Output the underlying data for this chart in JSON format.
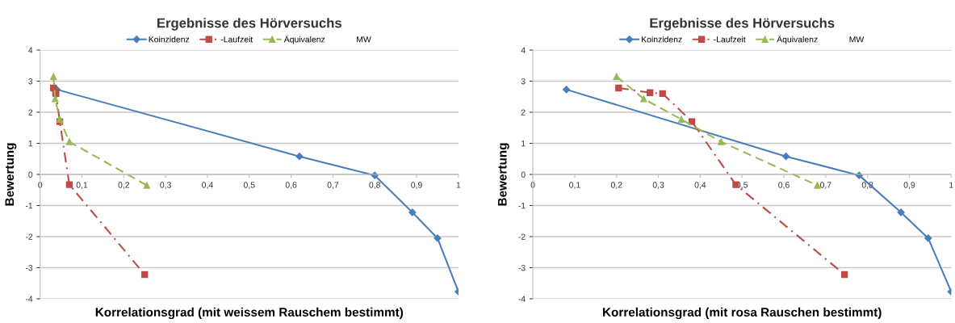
{
  "chart_data": [
    {
      "type": "line",
      "title": "Ergebnisse des Hörversuchs",
      "xlabel": "Korrelationsgrad (mit weissem Rauschem bestimmt)",
      "ylabel": "Bewertung",
      "xlim": [
        0,
        1
      ],
      "xticks": [
        0,
        {
          "value": 0.1,
          "label": "0,1"
        },
        {
          "value": 0.2,
          "label": "0,2"
        },
        {
          "value": 0.3,
          "label": "0,3"
        },
        {
          "value": 0.4,
          "label": "0,4"
        },
        {
          "value": 0.5,
          "label": "0,5"
        },
        {
          "value": 0.6,
          "label": "0,6"
        },
        {
          "value": 0.7,
          "label": "0,7"
        },
        {
          "value": 0.8,
          "label": "0,8"
        },
        {
          "value": 0.9,
          "label": "0,9"
        },
        1
      ],
      "ylim": [
        -4,
        4
      ],
      "yticks": [
        -4,
        -3,
        -2,
        -1,
        0,
        1,
        2,
        3,
        4
      ],
      "grid": "y",
      "legend": "top",
      "annotations": [
        "MW"
      ],
      "series": [
        {
          "name": "Koinzidenz",
          "color": "#4a7ebb",
          "marker": "diamond",
          "line_style": "solid",
          "x": [
            0.04,
            0.62,
            0.8,
            0.89,
            0.95,
            1.0
          ],
          "values": [
            2.73,
            0.58,
            -0.03,
            -1.22,
            -2.05,
            -3.77
          ]
        },
        {
          "name": "-Laufzeit",
          "color": "#be4b48",
          "marker": "square",
          "line_style": "dashdot",
          "x": [
            0.032,
            0.037,
            0.038,
            0.047,
            0.07,
            0.25
          ],
          "values": [
            2.78,
            2.63,
            2.6,
            1.7,
            -0.33,
            -3.22
          ]
        },
        {
          "name": "Äquivalenz",
          "color": "#98b954",
          "marker": "triangle",
          "line_style": "dashed",
          "x": [
            0.032,
            0.036,
            0.047,
            0.07,
            0.255
          ],
          "values": [
            3.15,
            2.43,
            1.77,
            1.05,
            -0.35
          ]
        }
      ]
    },
    {
      "type": "line",
      "title": "Ergebnisse des Hörversuchs",
      "xlabel": "Korrelationsgrad (mit rosa Rauschen bestimmt)",
      "ylabel": "Bewertung",
      "xlim": [
        0,
        1
      ],
      "xticks": [
        0,
        {
          "value": 0.1,
          "label": "0,1"
        },
        {
          "value": 0.2,
          "label": "0,2"
        },
        {
          "value": 0.3,
          "label": "0,3"
        },
        {
          "value": 0.4,
          "label": "0,4"
        },
        {
          "value": 0.5,
          "label": "0,5"
        },
        {
          "value": 0.6,
          "label": "0,6"
        },
        {
          "value": 0.7,
          "label": "0,7"
        },
        {
          "value": 0.8,
          "label": "0,8"
        },
        {
          "value": 0.9,
          "label": "0,9"
        },
        1
      ],
      "ylim": [
        -4,
        4
      ],
      "yticks": [
        -4,
        -3,
        -2,
        -1,
        0,
        1,
        2,
        3,
        4
      ],
      "grid": "y",
      "legend": "top",
      "annotations": [
        "MW"
      ],
      "series": [
        {
          "name": "Koinzidenz",
          "color": "#4a7ebb",
          "marker": "diamond",
          "line_style": "solid",
          "x": [
            0.08,
            0.605,
            0.78,
            0.88,
            0.945,
            1.0
          ],
          "values": [
            2.73,
            0.58,
            -0.03,
            -1.22,
            -2.05,
            -3.77
          ]
        },
        {
          "name": "-Laufzeit",
          "color": "#be4b48",
          "marker": "square",
          "line_style": "dashdot",
          "x": [
            0.205,
            0.28,
            0.31,
            0.38,
            0.485,
            0.745
          ],
          "values": [
            2.78,
            2.63,
            2.6,
            1.7,
            -0.33,
            -3.22
          ]
        },
        {
          "name": "Äquivalenz",
          "color": "#98b954",
          "marker": "triangle",
          "line_style": "dashed",
          "x": [
            0.2,
            0.265,
            0.355,
            0.45,
            0.68
          ],
          "values": [
            3.15,
            2.43,
            1.77,
            1.05,
            -0.35
          ]
        }
      ]
    }
  ]
}
